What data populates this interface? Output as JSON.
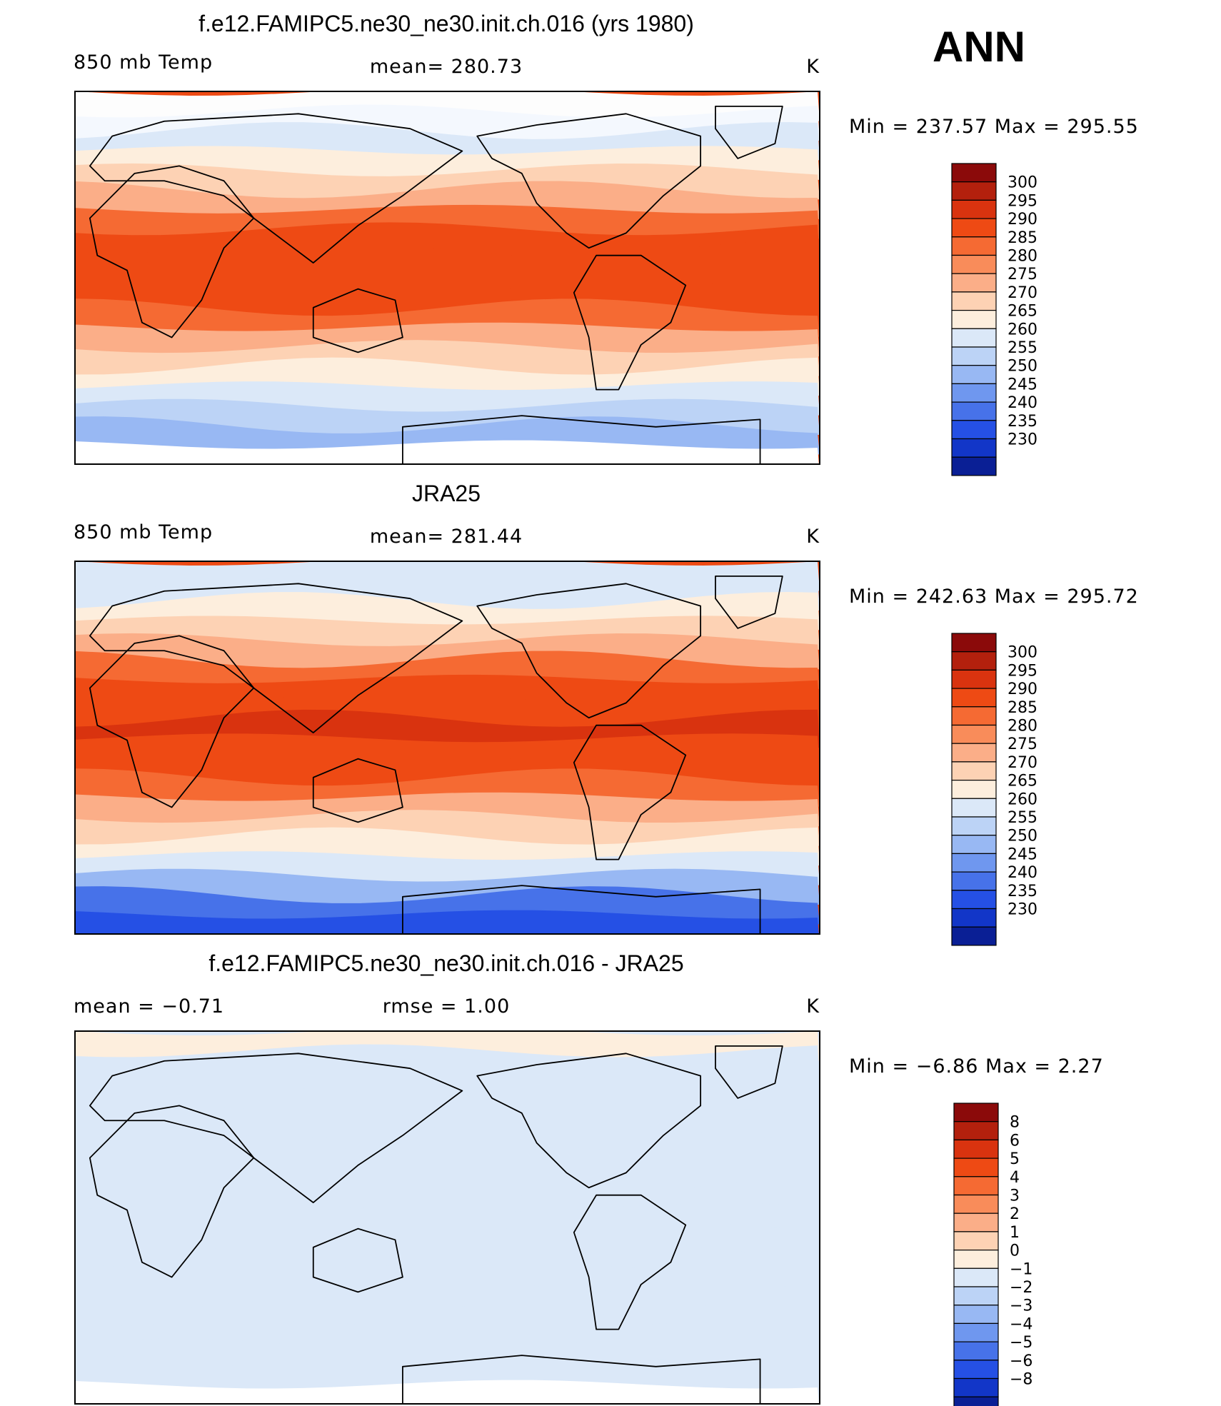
{
  "season": "ANN",
  "panels": [
    {
      "title": "f.e12.FAMIPC5.ne30_ne30.init.ch.016 (yrs 1980)",
      "left_label": "850 mb Temp",
      "center_label": "mean=  280.73",
      "units": "K",
      "minmax": "Min  =  237.57  Max  =  295.55",
      "kind": "abs"
    },
    {
      "title": "JRA25",
      "left_label": "850 mb Temp",
      "center_label": "mean=  281.44",
      "units": "K",
      "minmax": "Min  =  242.63  Max  =  295.72",
      "kind": "abs"
    },
    {
      "title": "f.e12.FAMIPC5.ne30_ne30.init.ch.016 - JRA25",
      "left_label": "mean  =     −0.71",
      "center_label": "rmse  =      1.00",
      "units": "K",
      "minmax": "Min  =     −6.86  Max  =      2.27",
      "kind": "diff"
    }
  ],
  "colorbar_abs": {
    "labels": [
      "300",
      "295",
      "290",
      "285",
      "280",
      "275",
      "270",
      "265",
      "260",
      "255",
      "250",
      "245",
      "240",
      "235",
      "230"
    ],
    "colors": [
      "#8b0a0a",
      "#b3200d",
      "#d9330f",
      "#ee4a14",
      "#f56a33",
      "#f98c5a",
      "#fbae88",
      "#fdd2b4",
      "#fdeedd",
      "#dbe8f8",
      "#bcd3f6",
      "#98b8f3",
      "#6f97ef",
      "#4772e9",
      "#2550e5",
      "#1236c8",
      "#0a1f95"
    ]
  },
  "colorbar_diff": {
    "labels": [
      "8",
      "6",
      "5",
      "4",
      "3",
      "2",
      "1",
      "0",
      "−1",
      "−2",
      "−3",
      "−4",
      "−5",
      "−6",
      "−8"
    ],
    "colors": [
      "#8b0a0a",
      "#b3200d",
      "#d9330f",
      "#ee4a14",
      "#f56a33",
      "#f98c5a",
      "#fbae88",
      "#fdd2b4",
      "#fdeedd",
      "#dbe8f8",
      "#bcd3f6",
      "#98b8f3",
      "#6f97ef",
      "#4772e9",
      "#2550e5",
      "#1236c8",
      "#0a1f95"
    ]
  },
  "map_fields": {
    "model": {
      "band_colors": [
        "#fdfdfd",
        "#f4f8fe",
        "#dbe8f8",
        "#fdeedd",
        "#fdd2b4",
        "#fbae88",
        "#f56a33",
        "#ee4a14",
        "#ee4a14",
        "#ee4a14",
        "#ee4a14",
        "#f56a33",
        "#fbae88",
        "#fdd2b4",
        "#fdeedd",
        "#dbe8f8",
        "#bcd3f6",
        "#98b8f3",
        "#ffffff"
      ]
    },
    "obs": {
      "band_colors": [
        "#dbe8f8",
        "#dbe8f8",
        "#fdeedd",
        "#fdd2b4",
        "#fbae88",
        "#f56a33",
        "#ee4a14",
        "#ee4a14",
        "#d9330f",
        "#ee4a14",
        "#ee4a14",
        "#f56a33",
        "#fbae88",
        "#fdd2b4",
        "#fdeedd",
        "#dbe8f8",
        "#98b8f3",
        "#4772e9",
        "#2550e5"
      ]
    },
    "diff": {
      "band_colors": [
        "#fdeedd",
        "#dbe8f8",
        "#dbe8f8",
        "#dbe8f8",
        "#dbe8f8",
        "#dbe8f8",
        "#dbe8f8",
        "#dbe8f8",
        "#dbe8f8",
        "#dbe8f8",
        "#dbe8f8",
        "#dbe8f8",
        "#dbe8f8",
        "#dbe8f8",
        "#dbe8f8",
        "#dbe8f8",
        "#dbe8f8",
        "#dbe8f8",
        "#ffffff"
      ]
    }
  }
}
